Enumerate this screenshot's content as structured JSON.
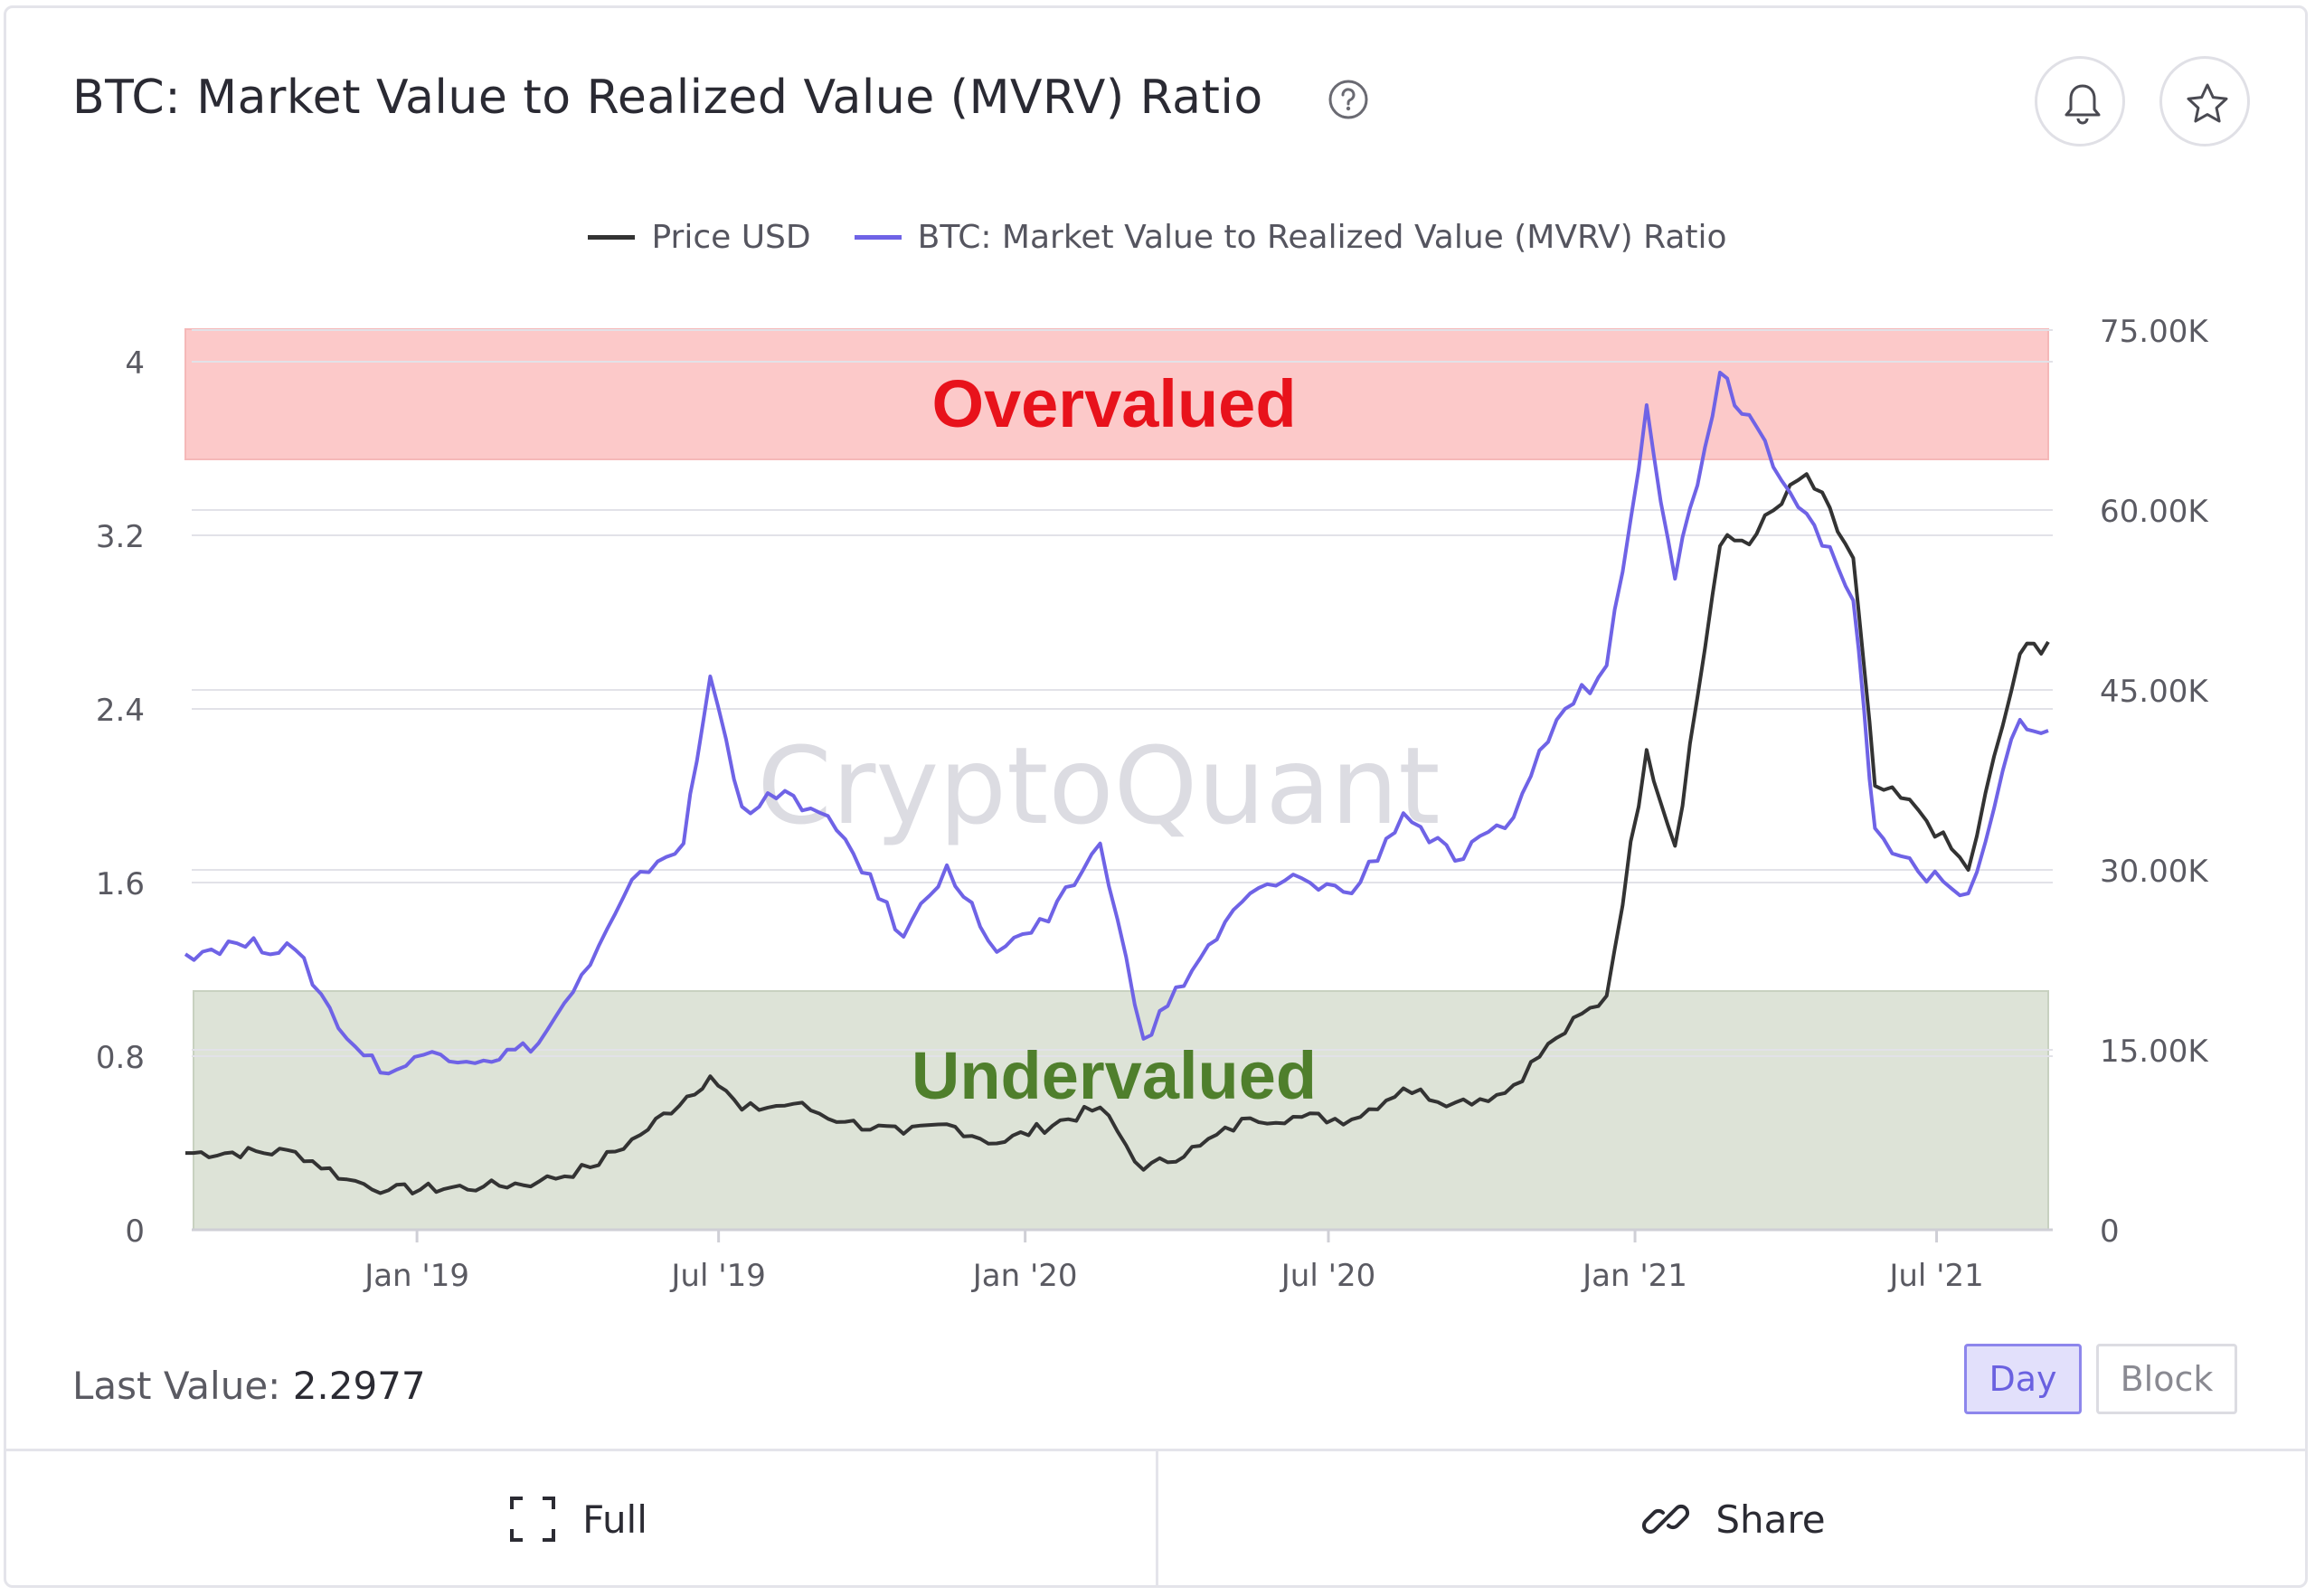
{
  "header": {
    "title": "BTC: Market Value to Realized Value (MVRV) Ratio",
    "help_icon": "question-circle-icon",
    "alert_icon": "bell-icon",
    "favorite_icon": "star-icon"
  },
  "legend": {
    "items": [
      {
        "label": "Price USD",
        "color": "#333333"
      },
      {
        "label": "BTC: Market Value to Realized Value (MVRV) Ratio",
        "color": "#6f63e6"
      }
    ]
  },
  "annotations": {
    "overvalued_label": "Overvalued",
    "undervalued_label": "Undervalued",
    "overvalued_color": "#e8121b",
    "undervalued_color": "#4f7f2c",
    "watermark": "CryptoQuant"
  },
  "chart_data": {
    "type": "line",
    "x_ticks": [
      "Jan '19",
      "Jul '19",
      "Jan '20",
      "Jul '20",
      "Jan '21",
      "Jul '21"
    ],
    "y_left_ticks": [
      "0",
      "0.8",
      "1.6",
      "2.4",
      "3.2",
      "4"
    ],
    "y_right_ticks": [
      "0",
      "15.00K",
      "30.00K",
      "45.00K",
      "60.00K",
      "75.00K"
    ],
    "ylim_left": [
      0,
      4
    ],
    "ylim_right": [
      0,
      75000
    ],
    "x_range": [
      "2018-08-15",
      "2021-09-06"
    ],
    "grid": true,
    "legend_position": "top-center",
    "bands": [
      {
        "label": "Overvalued",
        "y_from": 3.55,
        "y_to": 4.15
      },
      {
        "label": "Undervalued",
        "y_from": 0,
        "y_to": 1.1
      }
    ],
    "series": [
      {
        "name": "BTC: Market Value to Realized Value (MVRV) Ratio",
        "axis": "left",
        "color": "#6f63e6",
        "points": [
          [
            "2018-08-15",
            1.27
          ],
          [
            "2018-09-15",
            1.32
          ],
          [
            "2018-10-20",
            1.29
          ],
          [
            "2018-11-20",
            0.88
          ],
          [
            "2018-12-15",
            0.72
          ],
          [
            "2019-01-10",
            0.82
          ],
          [
            "2019-02-10",
            0.78
          ],
          [
            "2019-03-15",
            0.86
          ],
          [
            "2019-04-15",
            1.22
          ],
          [
            "2019-05-15",
            1.65
          ],
          [
            "2019-06-10",
            1.78
          ],
          [
            "2019-06-26",
            2.55
          ],
          [
            "2019-07-15",
            1.95
          ],
          [
            "2019-08-15",
            2.0
          ],
          [
            "2019-09-15",
            1.8
          ],
          [
            "2019-10-20",
            1.35
          ],
          [
            "2019-11-15",
            1.68
          ],
          [
            "2019-12-15",
            1.28
          ],
          [
            "2020-01-15",
            1.42
          ],
          [
            "2020-02-15",
            1.78
          ],
          [
            "2020-03-12",
            0.88
          ],
          [
            "2020-04-15",
            1.25
          ],
          [
            "2020-05-15",
            1.55
          ],
          [
            "2020-06-15",
            1.62
          ],
          [
            "2020-07-15",
            1.55
          ],
          [
            "2020-08-15",
            1.92
          ],
          [
            "2020-09-15",
            1.7
          ],
          [
            "2020-10-15",
            1.85
          ],
          [
            "2020-11-15",
            2.35
          ],
          [
            "2020-12-15",
            2.6
          ],
          [
            "2021-01-08",
            3.8
          ],
          [
            "2021-01-25",
            3.0
          ],
          [
            "2021-02-21",
            3.95
          ],
          [
            "2021-03-15",
            3.7
          ],
          [
            "2021-04-14",
            3.3
          ],
          [
            "2021-05-12",
            2.9
          ],
          [
            "2021-05-25",
            1.85
          ],
          [
            "2021-06-20",
            1.65
          ],
          [
            "2021-07-20",
            1.55
          ],
          [
            "2021-08-20",
            2.35
          ],
          [
            "2021-09-06",
            2.3
          ]
        ]
      },
      {
        "name": "Price USD",
        "axis": "right",
        "color": "#333333",
        "points": [
          [
            "2018-08-15",
            6400
          ],
          [
            "2018-10-20",
            6500
          ],
          [
            "2018-11-20",
            4200
          ],
          [
            "2018-12-15",
            3300
          ],
          [
            "2019-02-10",
            3600
          ],
          [
            "2019-03-15",
            4000
          ],
          [
            "2019-04-15",
            5200
          ],
          [
            "2019-05-15",
            7900
          ],
          [
            "2019-06-26",
            12800
          ],
          [
            "2019-07-15",
            10000
          ],
          [
            "2019-08-15",
            10500
          ],
          [
            "2019-09-15",
            9000
          ],
          [
            "2019-10-20",
            8000
          ],
          [
            "2019-11-15",
            8800
          ],
          [
            "2019-12-15",
            7200
          ],
          [
            "2020-02-15",
            10200
          ],
          [
            "2020-03-12",
            5000
          ],
          [
            "2020-04-15",
            7000
          ],
          [
            "2020-05-15",
            9300
          ],
          [
            "2020-06-15",
            9400
          ],
          [
            "2020-07-15",
            9200
          ],
          [
            "2020-08-15",
            11800
          ],
          [
            "2020-09-15",
            10600
          ],
          [
            "2020-10-15",
            11400
          ],
          [
            "2020-11-15",
            16000
          ],
          [
            "2020-12-15",
            19500
          ],
          [
            "2021-01-08",
            40000
          ],
          [
            "2021-01-25",
            32000
          ],
          [
            "2021-02-21",
            57000
          ],
          [
            "2021-03-15",
            58000
          ],
          [
            "2021-04-14",
            63000
          ],
          [
            "2021-05-12",
            56000
          ],
          [
            "2021-05-25",
            37000
          ],
          [
            "2021-06-20",
            35000
          ],
          [
            "2021-07-20",
            30000
          ],
          [
            "2021-08-20",
            48000
          ],
          [
            "2021-09-06",
            49000
          ]
        ]
      }
    ]
  },
  "summary": {
    "last_value_label": "Last Value:",
    "last_value": "2.2977"
  },
  "resolution": {
    "day_label": "Day",
    "block_label": "Block",
    "selected": "Day"
  },
  "footer": {
    "full_label": "Full",
    "full_icon": "expand-icon",
    "share_label": "Share",
    "share_icon": "link-icon"
  }
}
